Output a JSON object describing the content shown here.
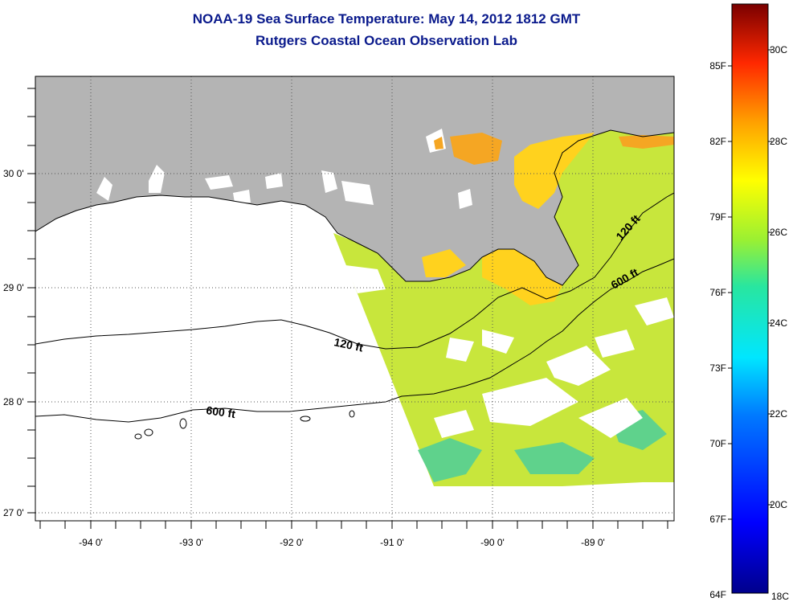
{
  "title": "NOAA-19 Sea Surface Temperature:  May 14, 2012 1812 GMT",
  "subtitle": "Rutgers Coastal Ocean Observation Lab",
  "map": {
    "lat_labels": [
      "30 0'",
      "29 0'",
      "28 0'",
      "27 0'"
    ],
    "lon_labels": [
      "-94 0'",
      "-93 0'",
      "-92 0'",
      "-91 0'",
      "-90 0'",
      "-89 0'"
    ],
    "contours": [
      "120 ft",
      "600 ft",
      "120 ft",
      "600 ft"
    ],
    "colors": {
      "land": "#b4b4b4",
      "cloud": "#ffffff",
      "sst_warm": "#ffd21e",
      "sst_mid": "#c8e63c",
      "sst_cool": "#5fd28c"
    }
  },
  "colorbar": {
    "f_labels": [
      "85F",
      "82F",
      "79F",
      "76F",
      "73F",
      "70F",
      "67F",
      "64F"
    ],
    "c_labels": [
      "30C",
      "28C",
      "26C",
      "24C",
      "22C",
      "20C",
      "18C"
    ]
  }
}
